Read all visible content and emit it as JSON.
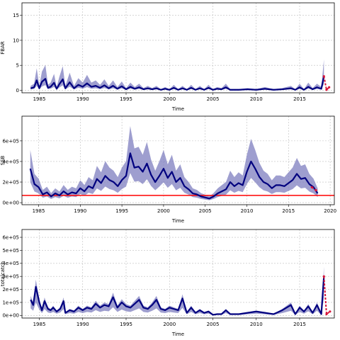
{
  "colors": {
    "estimate_line": "#00007f",
    "band_fill": "#7d7dbf",
    "forecast": "#d6163a",
    "reference_line": "#ff0000",
    "grid": "#bdbdbd"
  },
  "chart_data": [
    {
      "type": "line",
      "ylabel": "FBAR",
      "xlabel": "Time",
      "xlim": [
        1983,
        2019
      ],
      "ylim": [
        -0.5,
        17.5
      ],
      "x_ticks": [
        "1985",
        "1990",
        "1995",
        "2000",
        "2005",
        "2010",
        "2015"
      ],
      "y_ticks": [
        "0",
        "5",
        "10",
        "15"
      ],
      "grid": true,
      "estimate": {
        "x": [
          1984,
          1984.4,
          1984.7,
          1985,
          1985.3,
          1985.7,
          1986,
          1986.3,
          1986.7,
          1987,
          1987.3,
          1987.7,
          1988,
          1988.5,
          1989,
          1989.5,
          1990,
          1990.5,
          1991,
          1991.5,
          1992,
          1992.5,
          1993,
          1993.5,
          1994,
          1994.5,
          1995,
          1995.5,
          1996,
          1996.5,
          1997,
          1997.5,
          1998,
          1998.5,
          1999,
          1999.5,
          2000,
          2000.5,
          2001,
          2001.5,
          2002,
          2002.5,
          2003,
          2003.5,
          2004,
          2004.5,
          2005,
          2005.5,
          2006,
          2006.5,
          2007,
          2008,
          2009,
          2010,
          2011,
          2012,
          2013,
          2014,
          2014.5,
          2015,
          2015.5,
          2016,
          2016.5,
          2017,
          2017.5,
          2017.8
        ],
        "y": [
          0.4,
          0.6,
          2.0,
          0.4,
          1.7,
          2.3,
          0.5,
          0.7,
          1.5,
          0.3,
          1.2,
          2.2,
          0.4,
          1.6,
          0.4,
          1.1,
          0.7,
          1.4,
          0.7,
          0.9,
          0.5,
          1.0,
          0.4,
          0.9,
          0.3,
          0.8,
          0.2,
          0.7,
          0.3,
          0.6,
          0.2,
          0.4,
          0.2,
          0.4,
          0.1,
          0.3,
          0.1,
          0.5,
          0.1,
          0.4,
          0.1,
          0.5,
          0.1,
          0.4,
          0.1,
          0.5,
          0.1,
          0.3,
          0.2,
          0.6,
          0.1,
          0.1,
          0.2,
          0.1,
          0.3,
          0.1,
          0.2,
          0.4,
          0.1,
          0.6,
          0.1,
          0.7,
          0.2,
          0.6,
          0.3,
          2.8
        ],
        "band_upper_factor": 2.2
      },
      "forecast": {
        "x": [
          2017.8,
          2018.1,
          2018.4
        ],
        "y": [
          2.8,
          0.1,
          0.6
        ]
      }
    },
    {
      "type": "line",
      "ylabel": "SSB",
      "xlabel": "Time",
      "xlim": [
        1983,
        2020.5
      ],
      "ylim": [
        -20000,
        840000
      ],
      "x_ticks": [
        "1985",
        "1990",
        "1995",
        "2000",
        "2005",
        "2010",
        "2015",
        "2020"
      ],
      "y_ticks": [
        "0e+00",
        "2e+05",
        "4e+05",
        "6e+05"
      ],
      "grid": true,
      "reference_line_y": 70000,
      "estimate": {
        "x": [
          1984,
          1984.5,
          1985,
          1985.5,
          1986,
          1986.5,
          1987,
          1987.5,
          1988,
          1988.5,
          1989,
          1989.5,
          1990,
          1990.5,
          1991,
          1991.5,
          1992,
          1992.5,
          1993,
          1993.5,
          1994,
          1994.5,
          1995,
          1995.5,
          1996,
          1996.5,
          1997,
          1997.5,
          1998,
          1998.5,
          1999,
          1999.5,
          2000,
          2000.5,
          2001,
          2001.5,
          2002,
          2002.5,
          2003,
          2003.5,
          2004,
          2004.5,
          2005,
          2005.5,
          2006,
          2006.5,
          2007,
          2007.5,
          2008,
          2008.5,
          2009,
          2009.5,
          2010,
          2010.5,
          2011,
          2011.5,
          2012,
          2012.5,
          2013,
          2013.5,
          2014,
          2014.5,
          2015,
          2015.5,
          2016,
          2016.5,
          2017,
          2017.5,
          2018,
          2018.5
        ],
        "y": [
          330000,
          180000,
          150000,
          80000,
          100000,
          60000,
          90000,
          70000,
          110000,
          80000,
          100000,
          90000,
          140000,
          110000,
          160000,
          140000,
          230000,
          190000,
          260000,
          220000,
          200000,
          160000,
          220000,
          260000,
          480000,
          340000,
          350000,
          300000,
          380000,
          270000,
          200000,
          260000,
          330000,
          240000,
          300000,
          200000,
          240000,
          160000,
          130000,
          90000,
          80000,
          60000,
          50000,
          40000,
          60000,
          90000,
          110000,
          130000,
          200000,
          160000,
          190000,
          170000,
          300000,
          400000,
          330000,
          250000,
          200000,
          180000,
          140000,
          170000,
          170000,
          160000,
          190000,
          220000,
          280000,
          230000,
          240000,
          180000,
          150000,
          90000
        ],
        "band_upper_factor": 1.55,
        "band_lower_factor": 0.6
      },
      "forecast": {
        "x": [
          2017.8,
          2018.3
        ],
        "y": [
          150000,
          120000
        ]
      }
    },
    {
      "type": "line",
      "ylabel": "totalcatch",
      "xlabel": "Time",
      "xlim": [
        1983,
        2019
      ],
      "ylim": [
        -20000,
        660000
      ],
      "x_ticks": [
        "1985",
        "1990",
        "1995",
        "2000",
        "2005",
        "2010",
        "2015"
      ],
      "y_ticks": [
        "0e+00",
        "1e+05",
        "2e+05",
        "3e+05",
        "4e+05",
        "5e+05",
        "6e+05"
      ],
      "grid": true,
      "estimate": {
        "x": [
          1984,
          1984.3,
          1984.6,
          1985,
          1985.3,
          1985.6,
          1986,
          1986.3,
          1986.6,
          1987,
          1987.4,
          1987.8,
          1988,
          1988.5,
          1989,
          1989.5,
          1990,
          1990.5,
          1991,
          1991.5,
          1992,
          1992.5,
          1993,
          1993.5,
          1994,
          1994.5,
          1995,
          1995.5,
          1996,
          1996.5,
          1997,
          1997.5,
          1998,
          1998.5,
          1999,
          1999.5,
          2000,
          2000.5,
          2001,
          2001.5,
          2002,
          2002.5,
          2003,
          2003.5,
          2004,
          2004.5,
          2005,
          2005.5,
          2006,
          2006.5,
          2007,
          2008,
          2009,
          2010,
          2011,
          2012,
          2013,
          2014,
          2014.5,
          2015,
          2015.5,
          2016,
          2016.5,
          2017,
          2017.5,
          2017.8
        ],
        "y": [
          120000,
          80000,
          220000,
          100000,
          40000,
          110000,
          50000,
          40000,
          60000,
          30000,
          50000,
          110000,
          20000,
          40000,
          30000,
          60000,
          40000,
          60000,
          50000,
          90000,
          60000,
          80000,
          70000,
          140000,
          60000,
          100000,
          70000,
          60000,
          90000,
          120000,
          60000,
          50000,
          80000,
          120000,
          50000,
          40000,
          60000,
          50000,
          40000,
          130000,
          20000,
          60000,
          20000,
          40000,
          20000,
          30000,
          5000,
          10000,
          10000,
          40000,
          10000,
          10000,
          20000,
          30000,
          20000,
          10000,
          40000,
          80000,
          10000,
          60000,
          30000,
          70000,
          20000,
          80000,
          10000,
          300000
        ],
        "band_upper_factor": 1.25
      },
      "forecast": {
        "x": [
          2017.8,
          2018.1,
          2018.5
        ],
        "y": [
          300000,
          10000,
          30000
        ]
      }
    }
  ]
}
